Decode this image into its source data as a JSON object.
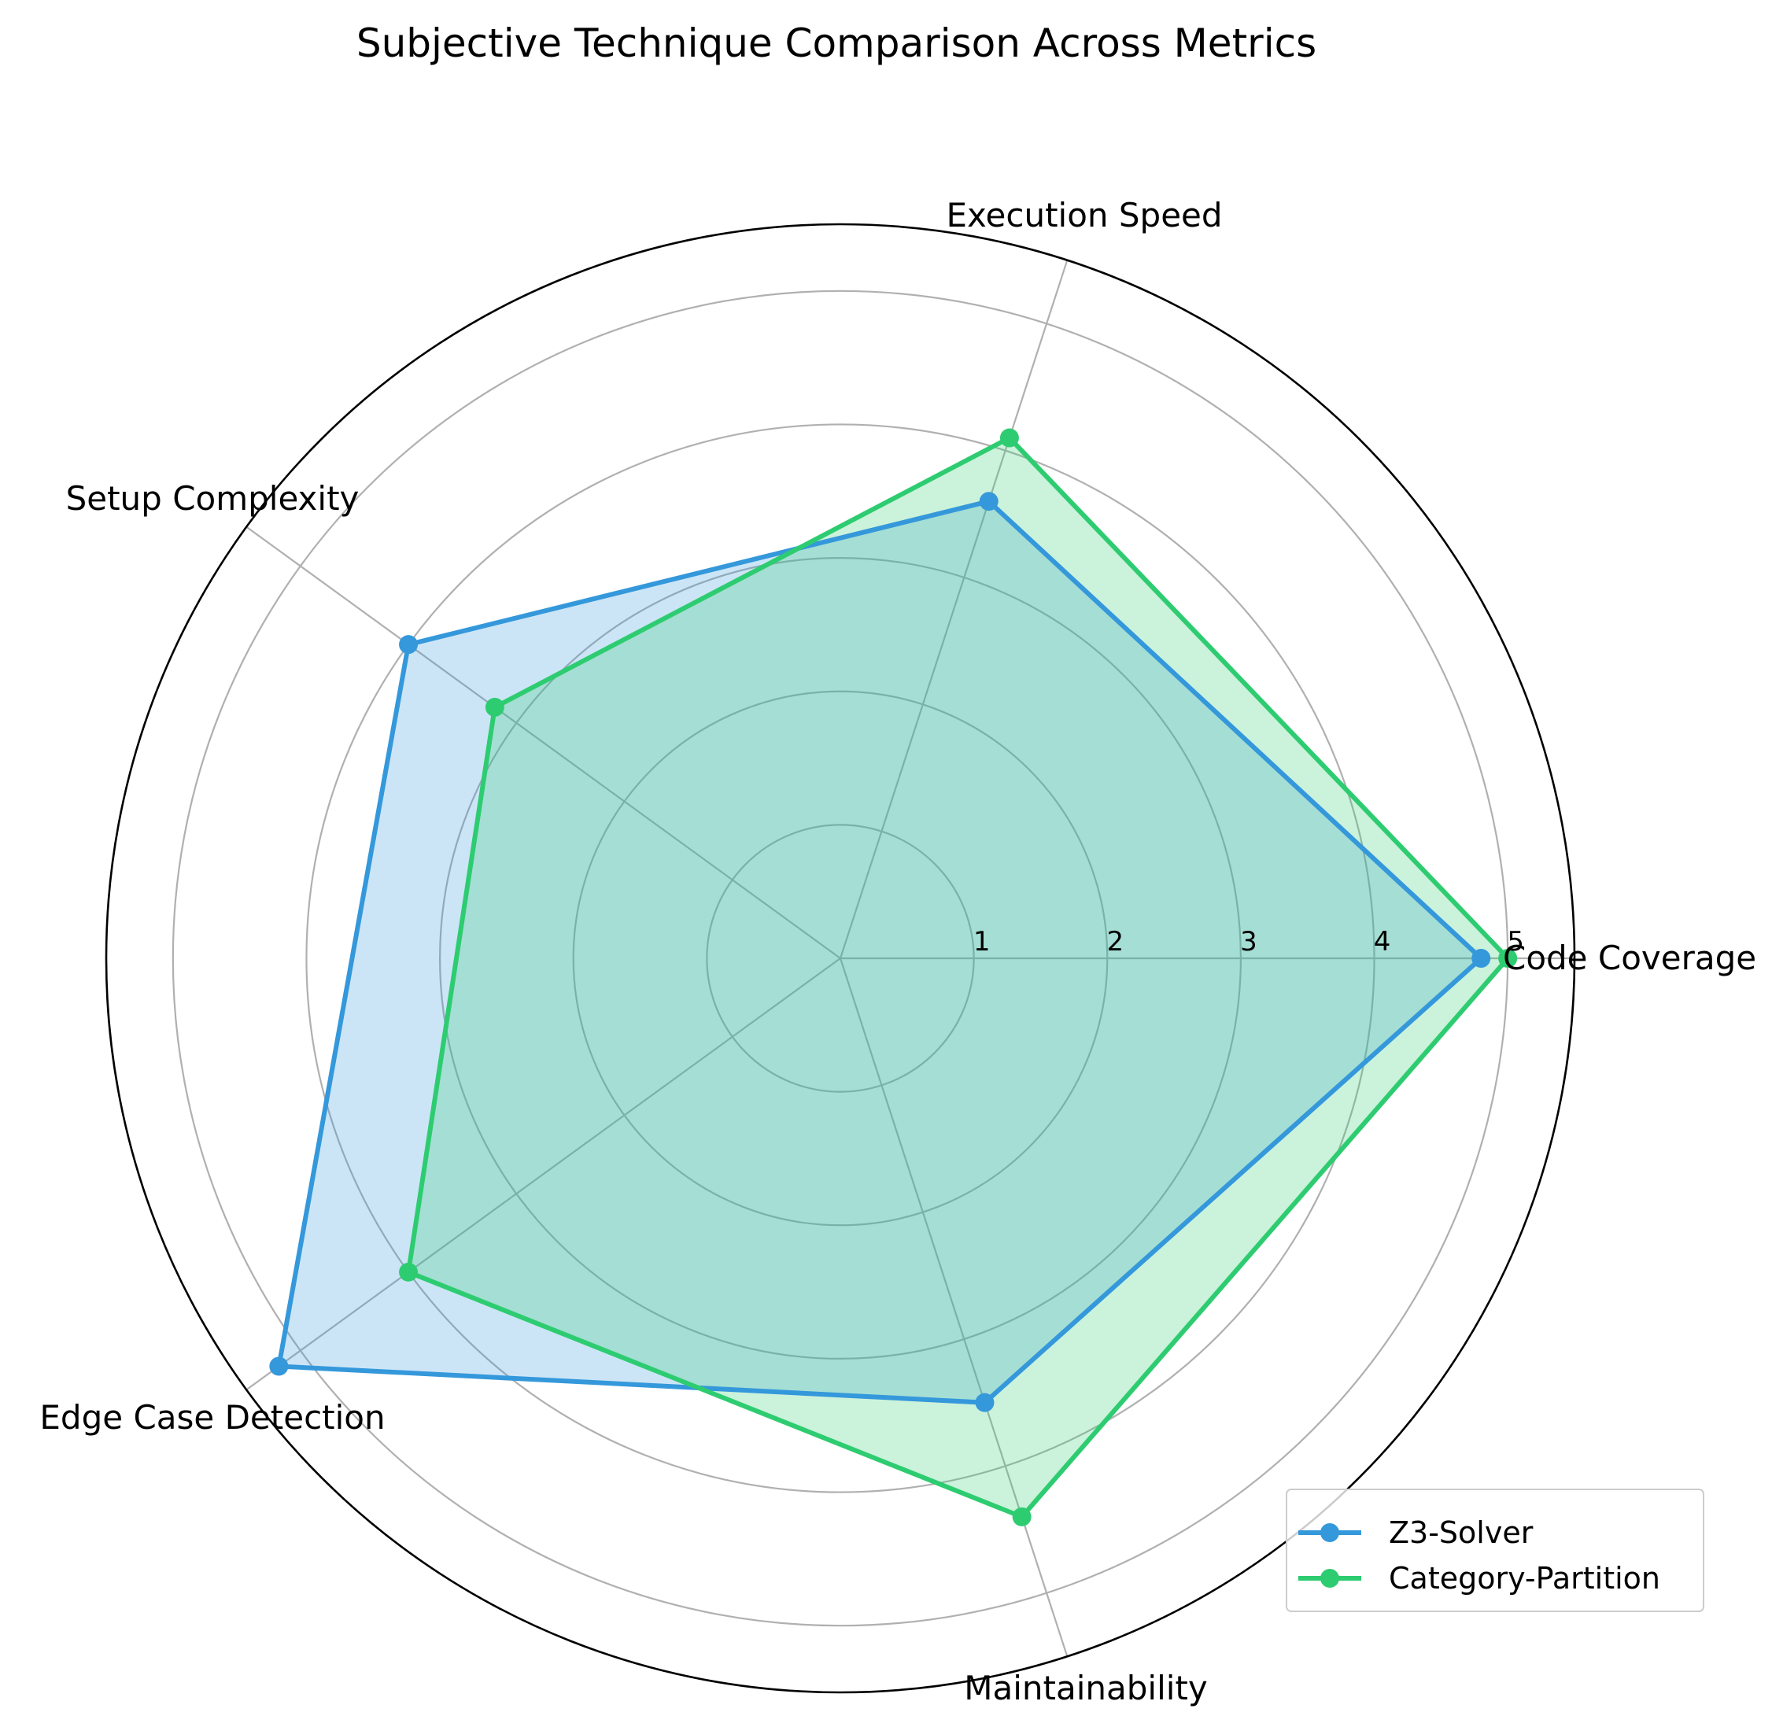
{
  "chart_data": {
    "type": "radar",
    "title": "Subjective Technique Comparison Across Metrics",
    "categories": [
      "Code Coverage",
      "Execution Speed",
      "Setup Complexity",
      "Edge Case Detection",
      "Maintainability"
    ],
    "rlim": [
      0,
      5.5
    ],
    "radial_ticks": [
      1,
      2,
      3,
      4,
      5
    ],
    "grid": true,
    "legend_position": "bottom-right",
    "series": [
      {
        "name": "Z3-Solver",
        "color": "#3498db",
        "values": [
          4.8,
          3.6,
          4.0,
          5.2,
          3.5
        ]
      },
      {
        "name": "Category-Partition",
        "color": "#2ecc71",
        "values": [
          5.0,
          4.1,
          3.2,
          4.0,
          4.4
        ]
      }
    ]
  }
}
